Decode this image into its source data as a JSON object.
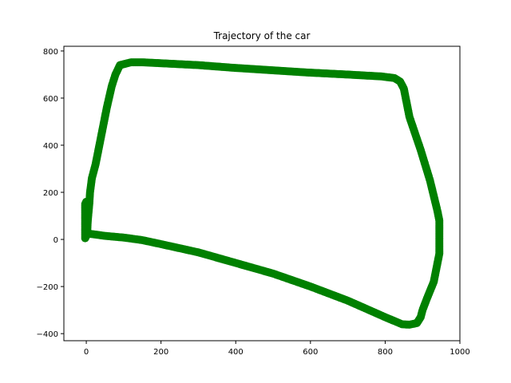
{
  "chart_data": {
    "type": "scatter",
    "title": "Trajectory of the car",
    "xlabel": "",
    "ylabel": "",
    "xlim": [
      -60,
      1000
    ],
    "ylim": [
      -430,
      820
    ],
    "xticks": [
      0,
      200,
      400,
      600,
      800,
      1000
    ],
    "yticks": [
      -400,
      -200,
      0,
      200,
      400,
      600,
      800
    ],
    "grid": false,
    "marker": "circle",
    "series": [
      {
        "color": "#008000",
        "points": [
          [
            5,
            25
          ],
          [
            50,
            15
          ],
          [
            100,
            8
          ],
          [
            150,
            -3
          ],
          [
            200,
            -20
          ],
          [
            300,
            -55
          ],
          [
            400,
            -100
          ],
          [
            500,
            -145
          ],
          [
            600,
            -200
          ],
          [
            700,
            -260
          ],
          [
            800,
            -330
          ],
          [
            845,
            -360
          ],
          [
            865,
            -362
          ],
          [
            885,
            -355
          ],
          [
            895,
            -330
          ],
          [
            900,
            -300
          ],
          [
            912,
            -250
          ],
          [
            930,
            -180
          ],
          [
            945,
            -60
          ],
          [
            945,
            80
          ],
          [
            940,
            120
          ],
          [
            920,
            250
          ],
          [
            895,
            380
          ],
          [
            880,
            450
          ],
          [
            865,
            520
          ],
          [
            860,
            560
          ],
          [
            850,
            640
          ],
          [
            840,
            670
          ],
          [
            825,
            685
          ],
          [
            790,
            692
          ],
          [
            700,
            700
          ],
          [
            600,
            708
          ],
          [
            500,
            718
          ],
          [
            400,
            728
          ],
          [
            300,
            740
          ],
          [
            200,
            748
          ],
          [
            150,
            752
          ],
          [
            120,
            752
          ],
          [
            90,
            740
          ],
          [
            78,
            700
          ],
          [
            68,
            650
          ],
          [
            55,
            560
          ],
          [
            45,
            480
          ],
          [
            35,
            400
          ],
          [
            25,
            320
          ],
          [
            15,
            260
          ],
          [
            10,
            200
          ],
          [
            8,
            150
          ],
          [
            4,
            80
          ],
          [
            2,
            20
          ],
          [
            -3,
            5
          ],
          [
            -3,
            100
          ],
          [
            -3,
            150
          ],
          [
            0,
            160
          ],
          [
            0,
            50
          ],
          [
            5,
            25
          ]
        ]
      }
    ]
  }
}
